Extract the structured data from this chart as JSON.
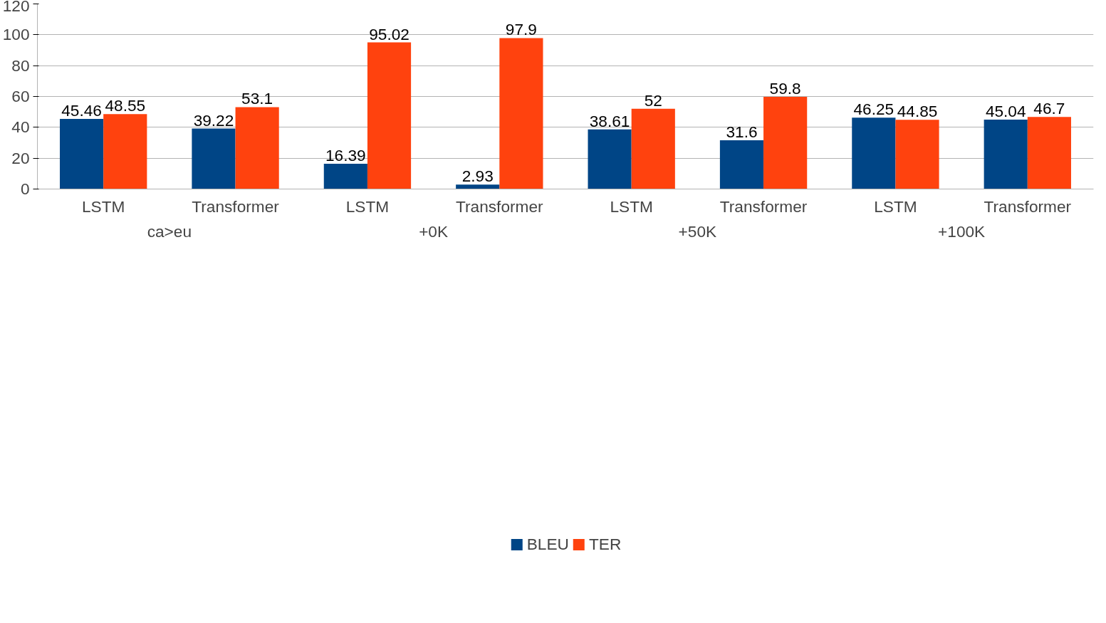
{
  "chart_data": {
    "type": "bar",
    "categories": [
      "LSTM",
      "Transformer",
      "LSTM",
      "Transformer",
      "LSTM",
      "Transformer",
      "LSTM",
      "Transformer"
    ],
    "annotations": [
      "ca>eu",
      "+0K",
      "+50K",
      "+100K"
    ],
    "series": [
      {
        "name": "BLEU",
        "color": "#004586",
        "values": [
          45.46,
          39.22,
          16.39,
          2.93,
          38.61,
          31.6,
          46.25,
          45.04
        ]
      },
      {
        "name": "TER",
        "color": "#ff420e",
        "values": [
          48.55,
          53.1,
          95.02,
          97.9,
          52,
          59.8,
          44.85,
          46.7
        ]
      }
    ],
    "ylim": [
      0,
      120
    ],
    "yticks": [
      0,
      20,
      40,
      60,
      80,
      100,
      120
    ],
    "grid": "y",
    "legend": "bottom",
    "data_labels": true
  }
}
